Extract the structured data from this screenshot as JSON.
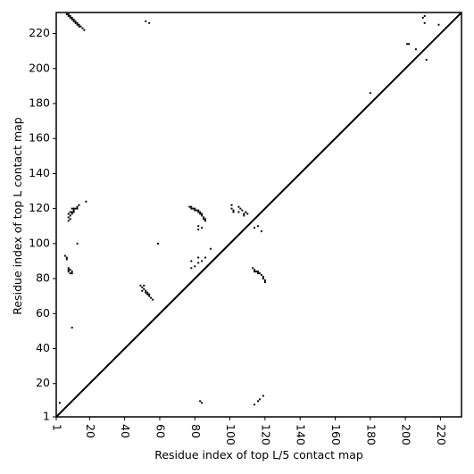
{
  "chart_data": {
    "type": "scatter",
    "xlabel": "Residue index of top L/5 contact map",
    "ylabel": "Residue index of top L contact map",
    "color": "#000000",
    "xlim": [
      1,
      232
    ],
    "ylim": [
      1,
      232
    ],
    "xticks": [
      1,
      20,
      40,
      60,
      80,
      100,
      120,
      140,
      160,
      180,
      200,
      220
    ],
    "yticks": [
      1,
      20,
      40,
      60,
      80,
      100,
      120,
      140,
      160,
      180,
      200,
      220
    ],
    "x": [
      7,
      8,
      9,
      10,
      11,
      12,
      13,
      14,
      15,
      16,
      17,
      8,
      9,
      10,
      11,
      12,
      13,
      14,
      8,
      8,
      9,
      9,
      10,
      10,
      11,
      11,
      12,
      13,
      13,
      14,
      9,
      10,
      11,
      8,
      18,
      13,
      6,
      7,
      7,
      8,
      8,
      9,
      9,
      10,
      10,
      8,
      10,
      49,
      50,
      51,
      51,
      52,
      52,
      53,
      54,
      54,
      55,
      56,
      50,
      53,
      52,
      54,
      59,
      77,
      78,
      79,
      80,
      81,
      82,
      83,
      83,
      84,
      85,
      86,
      86,
      78,
      80,
      82,
      84,
      85,
      82,
      82,
      84,
      78,
      78,
      80,
      82,
      82,
      84,
      86,
      89,
      101,
      101,
      102,
      102,
      105,
      106,
      107,
      108,
      108,
      109,
      110,
      105,
      114,
      116,
      118,
      113,
      114,
      115,
      116,
      117,
      118,
      119,
      119,
      120,
      120,
      114,
      116,
      180,
      201,
      202,
      206,
      210,
      211,
      211,
      212,
      219,
      3,
      83,
      84,
      114,
      116,
      117,
      119
    ],
    "y": [
      231,
      230,
      229,
      228,
      227,
      226,
      225,
      224,
      224,
      223,
      222,
      231,
      230,
      229,
      228,
      227,
      226,
      225,
      113,
      115,
      114,
      116,
      117,
      118,
      118,
      119,
      120,
      120,
      121,
      122,
      118,
      120,
      120,
      117,
      124,
      100,
      93,
      92,
      91,
      85,
      84,
      83,
      85,
      84,
      83,
      86,
      52,
      76,
      75,
      74,
      76,
      73,
      72,
      71,
      70,
      71,
      69,
      68,
      73,
      72,
      227,
      226,
      100,
      121,
      120,
      120,
      119,
      119,
      118,
      117,
      118,
      116,
      115,
      114,
      113,
      121,
      120,
      119,
      117,
      114,
      110,
      108,
      109,
      86,
      90,
      87,
      89,
      92,
      90,
      92,
      97,
      122,
      120,
      119,
      118,
      118,
      120,
      119,
      117,
      116,
      118,
      117,
      121,
      109,
      110,
      107,
      86,
      85,
      84,
      84,
      83,
      82,
      81,
      80,
      79,
      78,
      84,
      83,
      186,
      214,
      214,
      211,
      229,
      230,
      226,
      205,
      225,
      9,
      10,
      9,
      8,
      10,
      11,
      13
    ]
  }
}
